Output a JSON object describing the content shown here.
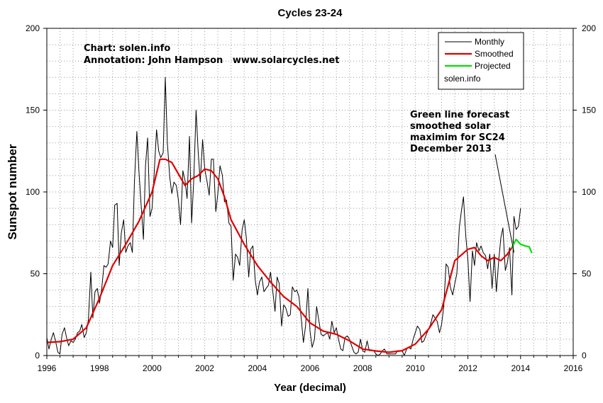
{
  "chart_data": {
    "type": "line",
    "title": "Cycles 23-24",
    "xlabel": "Year (decimal)",
    "ylabel": "Sunspot number",
    "xlim": [
      1996,
      2016
    ],
    "ylim": [
      0,
      200
    ],
    "x_ticks": [
      1996,
      1998,
      2000,
      2002,
      2004,
      2006,
      2008,
      2010,
      2012,
      2014,
      2016
    ],
    "y_ticks": [
      0,
      50,
      100,
      150,
      200
    ],
    "grid": true,
    "legend_position": "top-right",
    "credits": [
      "Chart: solen.info",
      "Annotation: John Hampson   www.solarcycles.net"
    ],
    "annotation": {
      "lines": [
        "Green line forecast",
        "smoothed solar",
        "maximim for SC24",
        "December 2013"
      ],
      "arrow_to": {
        "x": 2013.75,
        "y": 63
      }
    },
    "legend": {
      "items": [
        {
          "label": "Monthly",
          "color": "#000000"
        },
        {
          "label": "Smoothed",
          "color": "#e00000"
        },
        {
          "label": "Projected",
          "color": "#00e000"
        }
      ],
      "footer": "solen.info"
    },
    "series": [
      {
        "name": "Monthly",
        "color": "#000000",
        "points": [
          [
            1996.0,
            11
          ],
          [
            1996.08,
            4
          ],
          [
            1996.17,
            10
          ],
          [
            1996.25,
            14
          ],
          [
            1996.33,
            9
          ],
          [
            1996.42,
            2
          ],
          [
            1996.5,
            1
          ],
          [
            1996.58,
            13
          ],
          [
            1996.67,
            17
          ],
          [
            1996.75,
            11
          ],
          [
            1996.83,
            6
          ],
          [
            1996.92,
            9
          ],
          [
            1997.0,
            8
          ],
          [
            1997.08,
            10
          ],
          [
            1997.17,
            14
          ],
          [
            1997.25,
            15
          ],
          [
            1997.33,
            19
          ],
          [
            1997.42,
            11
          ],
          [
            1997.5,
            14
          ],
          [
            1997.58,
            22
          ],
          [
            1997.67,
            51
          ],
          [
            1997.75,
            23
          ],
          [
            1997.83,
            39
          ],
          [
            1997.92,
            41
          ],
          [
            1998.0,
            32
          ],
          [
            1998.08,
            40
          ],
          [
            1998.17,
            55
          ],
          [
            1998.25,
            54
          ],
          [
            1998.33,
            56
          ],
          [
            1998.42,
            70
          ],
          [
            1998.5,
            66
          ],
          [
            1998.58,
            92
          ],
          [
            1998.67,
            93
          ],
          [
            1998.75,
            55
          ],
          [
            1998.83,
            75
          ],
          [
            1998.92,
            83
          ],
          [
            1999.0,
            63
          ],
          [
            1999.08,
            67
          ],
          [
            1999.17,
            69
          ],
          [
            1999.25,
            63
          ],
          [
            1999.33,
            106
          ],
          [
            1999.42,
            137
          ],
          [
            1999.5,
            113
          ],
          [
            1999.58,
            93
          ],
          [
            1999.67,
            71
          ],
          [
            1999.75,
            116
          ],
          [
            1999.83,
            133
          ],
          [
            1999.92,
            85
          ],
          [
            2000.0,
            90
          ],
          [
            2000.08,
            112
          ],
          [
            2000.17,
            138
          ],
          [
            2000.25,
            125
          ],
          [
            2000.33,
            121
          ],
          [
            2000.42,
            124
          ],
          [
            2000.5,
            170
          ],
          [
            2000.58,
            130
          ],
          [
            2000.67,
            109
          ],
          [
            2000.75,
            99
          ],
          [
            2000.83,
            106
          ],
          [
            2000.92,
            104
          ],
          [
            2001.0,
            95
          ],
          [
            2001.08,
            80
          ],
          [
            2001.17,
            113
          ],
          [
            2001.25,
            107
          ],
          [
            2001.33,
            96
          ],
          [
            2001.42,
            134
          ],
          [
            2001.5,
            81
          ],
          [
            2001.58,
            106
          ],
          [
            2001.67,
            150
          ],
          [
            2001.75,
            125
          ],
          [
            2001.83,
            106
          ],
          [
            2001.92,
            132
          ],
          [
            2002.0,
            114
          ],
          [
            2002.08,
            107
          ],
          [
            2002.17,
            98
          ],
          [
            2002.25,
            120
          ],
          [
            2002.33,
            120
          ],
          [
            2002.42,
            88
          ],
          [
            2002.5,
            99
          ],
          [
            2002.58,
            116
          ],
          [
            2002.67,
            110
          ],
          [
            2002.75,
            94
          ],
          [
            2002.83,
            95
          ],
          [
            2002.92,
            81
          ],
          [
            2003.0,
            79
          ],
          [
            2003.08,
            46
          ],
          [
            2003.17,
            62
          ],
          [
            2003.25,
            60
          ],
          [
            2003.33,
            55
          ],
          [
            2003.42,
            77
          ],
          [
            2003.5,
            83
          ],
          [
            2003.58,
            72
          ],
          [
            2003.67,
            48
          ],
          [
            2003.75,
            65
          ],
          [
            2003.83,
            67
          ],
          [
            2003.92,
            46
          ],
          [
            2004.0,
            37
          ],
          [
            2004.08,
            45
          ],
          [
            2004.17,
            48
          ],
          [
            2004.25,
            39
          ],
          [
            2004.33,
            41
          ],
          [
            2004.42,
            43
          ],
          [
            2004.5,
            51
          ],
          [
            2004.58,
            40
          ],
          [
            2004.67,
            27
          ],
          [
            2004.75,
            48
          ],
          [
            2004.83,
            44
          ],
          [
            2004.92,
            18
          ],
          [
            2005.0,
            31
          ],
          [
            2005.08,
            29
          ],
          [
            2005.17,
            24
          ],
          [
            2005.25,
            25
          ],
          [
            2005.33,
            42
          ],
          [
            2005.42,
            39
          ],
          [
            2005.5,
            40
          ],
          [
            2005.58,
            36
          ],
          [
            2005.67,
            22
          ],
          [
            2005.75,
            8
          ],
          [
            2005.83,
            18
          ],
          [
            2005.92,
            41
          ],
          [
            2006.0,
            15
          ],
          [
            2006.08,
            5
          ],
          [
            2006.17,
            10
          ],
          [
            2006.25,
            30
          ],
          [
            2006.33,
            22
          ],
          [
            2006.42,
            13
          ],
          [
            2006.5,
            12
          ],
          [
            2006.58,
            13
          ],
          [
            2006.67,
            14
          ],
          [
            2006.75,
            10
          ],
          [
            2006.83,
            21
          ],
          [
            2006.92,
            14
          ],
          [
            2007.0,
            17
          ],
          [
            2007.08,
            10
          ],
          [
            2007.17,
            4
          ],
          [
            2007.25,
            3
          ],
          [
            2007.33,
            11
          ],
          [
            2007.42,
            12
          ],
          [
            2007.5,
            10
          ],
          [
            2007.58,
            6
          ],
          [
            2007.67,
            2
          ],
          [
            2007.75,
            1
          ],
          [
            2007.83,
            2
          ],
          [
            2007.92,
            10
          ],
          [
            2008.0,
            3
          ],
          [
            2008.08,
            2
          ],
          [
            2008.17,
            9
          ],
          [
            2008.25,
            3
          ],
          [
            2008.33,
            3
          ],
          [
            2008.42,
            3
          ],
          [
            2008.5,
            1
          ],
          [
            2008.58,
            0
          ],
          [
            2008.67,
            1
          ],
          [
            2008.75,
            3
          ],
          [
            2008.83,
            4
          ],
          [
            2008.92,
            1
          ],
          [
            2009.0,
            1
          ],
          [
            2009.08,
            1
          ],
          [
            2009.17,
            1
          ],
          [
            2009.25,
            1
          ],
          [
            2009.33,
            3
          ],
          [
            2009.42,
            3
          ],
          [
            2009.5,
            3
          ],
          [
            2009.58,
            0
          ],
          [
            2009.67,
            4
          ],
          [
            2009.75,
            5
          ],
          [
            2009.83,
            4
          ],
          [
            2009.92,
            10
          ],
          [
            2010.0,
            14
          ],
          [
            2010.08,
            18
          ],
          [
            2010.17,
            16
          ],
          [
            2010.25,
            8
          ],
          [
            2010.33,
            9
          ],
          [
            2010.42,
            13
          ],
          [
            2010.5,
            16
          ],
          [
            2010.58,
            19
          ],
          [
            2010.67,
            25
          ],
          [
            2010.75,
            23
          ],
          [
            2010.83,
            21
          ],
          [
            2010.92,
            14
          ],
          [
            2011.0,
            19
          ],
          [
            2011.08,
            30
          ],
          [
            2011.17,
            56
          ],
          [
            2011.25,
            54
          ],
          [
            2011.33,
            42
          ],
          [
            2011.42,
            37
          ],
          [
            2011.5,
            44
          ],
          [
            2011.58,
            50
          ],
          [
            2011.67,
            78
          ],
          [
            2011.75,
            88
          ],
          [
            2011.83,
            97
          ],
          [
            2011.92,
            73
          ],
          [
            2012.0,
            58
          ],
          [
            2012.08,
            33
          ],
          [
            2012.17,
            64
          ],
          [
            2012.25,
            55
          ],
          [
            2012.33,
            69
          ],
          [
            2012.42,
            64
          ],
          [
            2012.5,
            67
          ],
          [
            2012.58,
            63
          ],
          [
            2012.67,
            61
          ],
          [
            2012.75,
            53
          ],
          [
            2012.83,
            62
          ],
          [
            2012.92,
            41
          ],
          [
            2013.0,
            62
          ],
          [
            2013.08,
            39
          ],
          [
            2013.17,
            58
          ],
          [
            2013.25,
            72
          ],
          [
            2013.33,
            78
          ],
          [
            2013.42,
            52
          ],
          [
            2013.5,
            57
          ],
          [
            2013.58,
            66
          ],
          [
            2013.67,
            37
          ],
          [
            2013.75,
            85
          ],
          [
            2013.83,
            77
          ],
          [
            2013.92,
            79
          ],
          [
            2014.0,
            90
          ]
        ]
      },
      {
        "name": "Smoothed",
        "color": "#e00000",
        "points": [
          [
            1996.0,
            8
          ],
          [
            1996.5,
            8.5
          ],
          [
            1997.0,
            10
          ],
          [
            1997.5,
            17
          ],
          [
            1998.0,
            35
          ],
          [
            1998.5,
            55
          ],
          [
            1999.0,
            68
          ],
          [
            1999.5,
            82
          ],
          [
            2000.0,
            100
          ],
          [
            2000.3,
            120
          ],
          [
            2000.5,
            120
          ],
          [
            2000.75,
            118
          ],
          [
            2001.0,
            111
          ],
          [
            2001.25,
            104
          ],
          [
            2001.5,
            108
          ],
          [
            2001.75,
            110
          ],
          [
            2002.0,
            114
          ],
          [
            2002.25,
            113
          ],
          [
            2002.5,
            108
          ],
          [
            2002.75,
            97
          ],
          [
            2003.0,
            83
          ],
          [
            2003.5,
            68
          ],
          [
            2004.0,
            55
          ],
          [
            2004.5,
            45
          ],
          [
            2005.0,
            36
          ],
          [
            2005.5,
            30
          ],
          [
            2006.0,
            20
          ],
          [
            2006.5,
            15
          ],
          [
            2007.0,
            13
          ],
          [
            2007.5,
            9
          ],
          [
            2008.0,
            4
          ],
          [
            2008.5,
            2.8
          ],
          [
            2009.0,
            2
          ],
          [
            2009.5,
            3
          ],
          [
            2010.0,
            7
          ],
          [
            2010.5,
            16
          ],
          [
            2011.0,
            28
          ],
          [
            2011.5,
            58
          ],
          [
            2012.0,
            65
          ],
          [
            2012.25,
            66
          ],
          [
            2012.5,
            61
          ],
          [
            2012.75,
            58
          ],
          [
            2013.0,
            60
          ],
          [
            2013.25,
            58
          ],
          [
            2013.5,
            62
          ],
          [
            2013.67,
            66
          ]
        ]
      },
      {
        "name": "Projected",
        "color": "#00e000",
        "points": [
          [
            2013.67,
            66
          ],
          [
            2013.83,
            71
          ],
          [
            2014.0,
            68
          ],
          [
            2014.17,
            67
          ],
          [
            2014.33,
            66.5
          ],
          [
            2014.42,
            63
          ]
        ]
      }
    ]
  }
}
